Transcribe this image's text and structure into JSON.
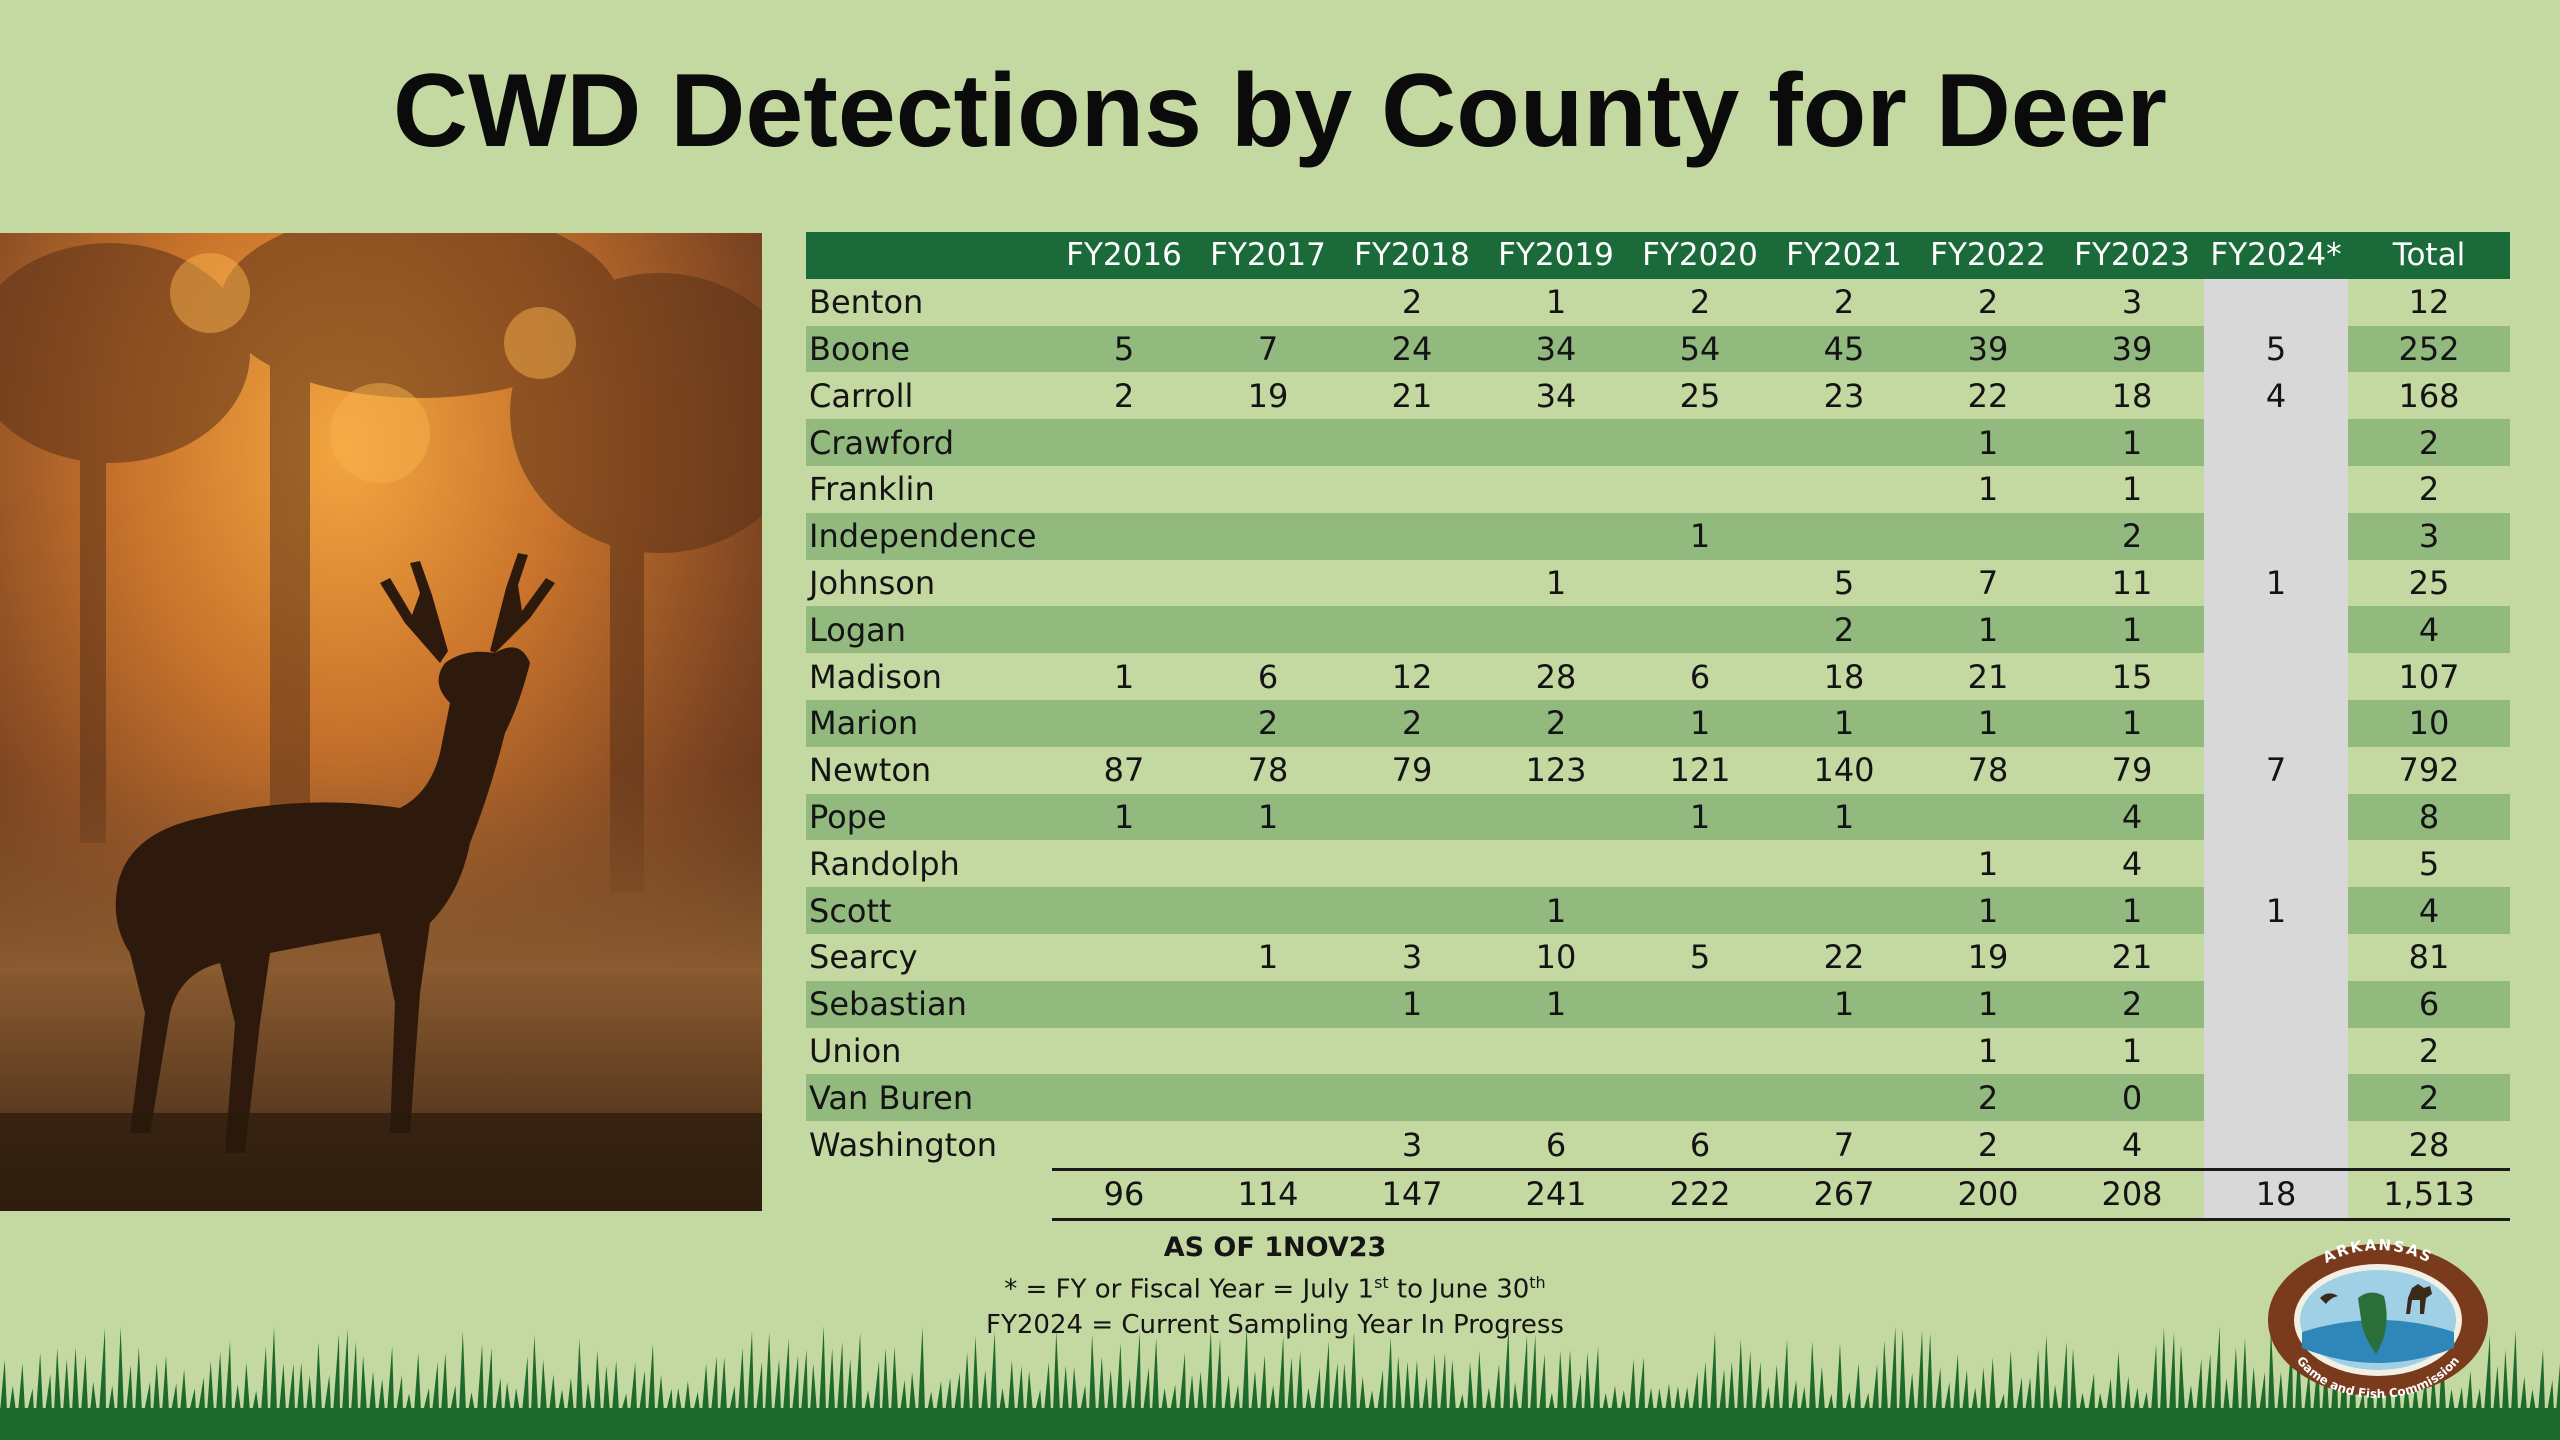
{
  "title": "CWD Detections by County for Deer",
  "table": {
    "headers": [
      "",
      "FY2016",
      "FY2017",
      "FY2018",
      "FY2019",
      "FY2020",
      "FY2021",
      "FY2022",
      "FY2023",
      "FY2024*",
      "Total"
    ],
    "rows": [
      [
        "Benton",
        "",
        "",
        "2",
        "1",
        "2",
        "2",
        "2",
        "3",
        "",
        "12"
      ],
      [
        "Boone",
        "5",
        "7",
        "24",
        "34",
        "54",
        "45",
        "39",
        "39",
        "5",
        "252"
      ],
      [
        "Carroll",
        "2",
        "19",
        "21",
        "34",
        "25",
        "23",
        "22",
        "18",
        "4",
        "168"
      ],
      [
        "Crawford",
        "",
        "",
        "",
        "",
        "",
        "",
        "1",
        "1",
        "",
        "2"
      ],
      [
        "Franklin",
        "",
        "",
        "",
        "",
        "",
        "",
        "1",
        "1",
        "",
        "2"
      ],
      [
        "Independence",
        "",
        "",
        "",
        "",
        "1",
        "",
        "",
        "2",
        "",
        "3"
      ],
      [
        "Johnson",
        "",
        "",
        "",
        "1",
        "",
        "5",
        "7",
        "11",
        "1",
        "25"
      ],
      [
        "Logan",
        "",
        "",
        "",
        "",
        "",
        "2",
        "1",
        "1",
        "",
        "4"
      ],
      [
        "Madison",
        "1",
        "6",
        "12",
        "28",
        "6",
        "18",
        "21",
        "15",
        "",
        "107"
      ],
      [
        "Marion",
        "",
        "2",
        "2",
        "2",
        "1",
        "1",
        "1",
        "1",
        "",
        "10"
      ],
      [
        "Newton",
        "87",
        "78",
        "79",
        "123",
        "121",
        "140",
        "78",
        "79",
        "7",
        "792"
      ],
      [
        "Pope",
        "1",
        "1",
        "",
        "",
        "1",
        "1",
        "",
        "4",
        "",
        "8"
      ],
      [
        "Randolph",
        "",
        "",
        "",
        "",
        "",
        "",
        "1",
        "4",
        "",
        "5"
      ],
      [
        "Scott",
        "",
        "",
        "",
        "1",
        "",
        "",
        "1",
        "1",
        "1",
        "4"
      ],
      [
        "Searcy",
        "",
        "1",
        "3",
        "10",
        "5",
        "22",
        "19",
        "21",
        "",
        "81"
      ],
      [
        "Sebastian",
        "",
        "",
        "1",
        "1",
        "",
        "1",
        "1",
        "2",
        "",
        "6"
      ],
      [
        "Union",
        "",
        "",
        "",
        "",
        "",
        "",
        "1",
        "1",
        "",
        "2"
      ],
      [
        "Van Buren",
        "",
        "",
        "",
        "",
        "",
        "",
        "2",
        "0",
        "",
        "2"
      ],
      [
        "Washington",
        "",
        "",
        "3",
        "6",
        "6",
        "7",
        "2",
        "4",
        "",
        "28"
      ]
    ],
    "totals": [
      "",
      "96",
      "114",
      "147",
      "241",
      "222",
      "267",
      "200",
      "208",
      "18",
      "1,513"
    ]
  },
  "notes": {
    "as_of": "AS OF 1NOV23",
    "line1_pre": "* = FY or Fiscal Year = July 1",
    "line1_sup1": "st",
    "line1_mid": " to June 30",
    "line1_sup2": "th",
    "line2": "FY2024 = Current Sampling Year In Progress"
  },
  "logo": {
    "top_text": "ARKANSAS",
    "bottom_text": "Game and Fish Commission"
  },
  "colors": {
    "background": "#c4d8a1",
    "header_green": "#1b6b3a",
    "alt_row": "#92ba7f",
    "fy2024_column": "#d8d8d8"
  },
  "images": {
    "photo": "buck-deer-in-misty-sunset-forest",
    "footer": "grass-silhouette"
  }
}
